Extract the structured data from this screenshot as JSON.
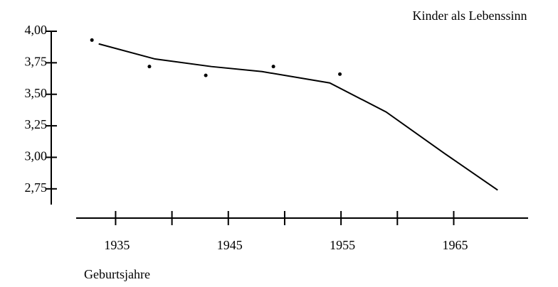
{
  "chart_data": {
    "type": "line",
    "title": "Kinder als Lebenssinn",
    "x_label": "Geburtsjahre",
    "xlim": [
      1931.5,
      1971.6
    ],
    "xticks": [
      1935,
      1945,
      1955,
      1965
    ],
    "xminor_ticks": [
      1940,
      1950,
      1960
    ],
    "ylim": [
      2.625,
      4.0
    ],
    "yticks": [
      {
        "value": 2.75,
        "label": "2,75"
      },
      {
        "value": 3.0,
        "label": "3,00"
      },
      {
        "value": 3.25,
        "label": "3,25"
      },
      {
        "value": 3.5,
        "label": "3,50"
      },
      {
        "value": 3.75,
        "label": "3,75"
      },
      {
        "value": 4.0,
        "label": "4,00"
      }
    ],
    "series": [
      {
        "style": "line",
        "color": "#000000",
        "x": [
          1933.5,
          1938.5,
          1943.5,
          1948,
          1954,
          1959,
          1964.2,
          1968.9
        ],
        "values": [
          3.9,
          3.78,
          3.72,
          3.68,
          3.59,
          3.36,
          3.03,
          2.74
        ]
      },
      {
        "style": "points",
        "color": "#000000",
        "x": [
          1932.9,
          1938,
          1943,
          1949,
          1954.9
        ],
        "values": [
          3.93,
          3.72,
          3.65,
          3.72,
          3.66
        ]
      }
    ]
  }
}
